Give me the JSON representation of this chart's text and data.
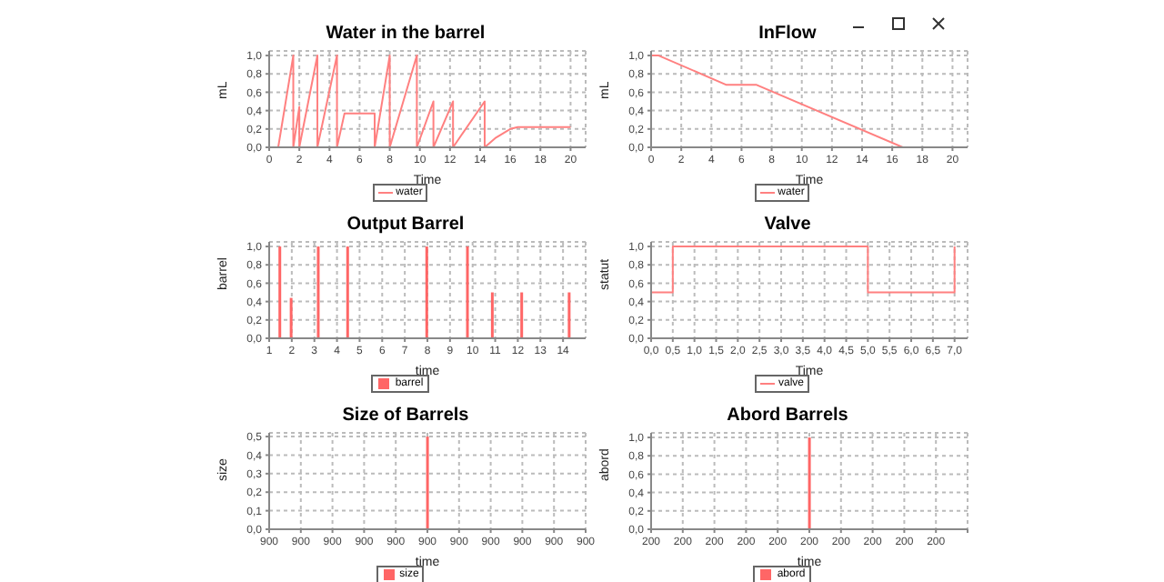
{
  "chart_data": [
    {
      "type": "line",
      "title": "Water in the barrel",
      "xlabel": "Time",
      "ylabel": "mL",
      "xlim": [
        0,
        21
      ],
      "xticks": [
        0,
        2,
        4,
        6,
        8,
        10,
        12,
        14,
        16,
        18,
        20
      ],
      "ylim": [
        0,
        1.05
      ],
      "yticks": [
        {
          "value": 0,
          "label": "0,0"
        },
        {
          "value": 0.2,
          "label": "0,2"
        },
        {
          "value": 0.4,
          "label": "0,4"
        },
        {
          "value": 0.6,
          "label": "0,6"
        },
        {
          "value": 0.8,
          "label": "0,8"
        },
        {
          "value": 1,
          "label": "1,0"
        }
      ],
      "grid": true,
      "legend": "bottom",
      "x": [
        0,
        0.6,
        1.6,
        1.6,
        2.0,
        2.0,
        3.2,
        3.2,
        4.5,
        4.5,
        5.0,
        7.0,
        7.0,
        8.0,
        8.0,
        9.8,
        9.8,
        10.9,
        10.9,
        12.2,
        12.2,
        14.3,
        14.3,
        15.0,
        16.0,
        16.5,
        20.0
      ],
      "series": [
        {
          "name": "water",
          "color": "#ff8080",
          "values": [
            0,
            0,
            1,
            0,
            0.44,
            0,
            1,
            0,
            1,
            0,
            0.37,
            0.37,
            0,
            1,
            0,
            1,
            0,
            0.5,
            0,
            0.5,
            0,
            0.5,
            0,
            0.1,
            0.2,
            0.22,
            0.22
          ]
        }
      ]
    },
    {
      "type": "line",
      "title": "InFlow",
      "xlabel": "Time",
      "ylabel": "mL",
      "xlim": [
        0,
        21
      ],
      "xticks": [
        0,
        2,
        4,
        6,
        8,
        10,
        12,
        14,
        16,
        18,
        20
      ],
      "ylim": [
        0,
        1.05
      ],
      "yticks": [
        {
          "value": 0,
          "label": "0,0"
        },
        {
          "value": 0.2,
          "label": "0,2"
        },
        {
          "value": 0.4,
          "label": "0,4"
        },
        {
          "value": 0.6,
          "label": "0,6"
        },
        {
          "value": 0.8,
          "label": "0,8"
        },
        {
          "value": 1,
          "label": "1,0"
        }
      ],
      "grid": true,
      "legend": "bottom",
      "x": [
        0,
        0.5,
        5,
        7,
        16.7,
        20
      ],
      "series": [
        {
          "name": "water",
          "color": "#ff8080",
          "values": [
            1,
            1,
            0.68,
            0.68,
            0,
            0
          ]
        }
      ]
    },
    {
      "type": "bar",
      "title": "Output Barrel",
      "xlabel": "time",
      "ylabel": "barrel",
      "xlim": [
        1,
        15
      ],
      "xticks": [
        1,
        2,
        3,
        4,
        5,
        6,
        7,
        8,
        9,
        10,
        11,
        12,
        13,
        14
      ],
      "ylim": [
        0,
        1.05
      ],
      "yticks": [
        {
          "value": 0,
          "label": "0,0"
        },
        {
          "value": 0.2,
          "label": "0,2"
        },
        {
          "value": 0.4,
          "label": "0,4"
        },
        {
          "value": 0.6,
          "label": "0,6"
        },
        {
          "value": 0.8,
          "label": "0,8"
        },
        {
          "value": 1,
          "label": "1,0"
        }
      ],
      "grid": true,
      "legend": "bottom",
      "x": [
        1.5,
        2.0,
        3.2,
        4.5,
        8.0,
        9.8,
        10.9,
        12.2,
        14.3
      ],
      "series": [
        {
          "name": "barrel",
          "color": "#ff6666",
          "values": [
            1,
            0.44,
            1,
            1,
            1,
            1,
            0.5,
            0.5,
            0.5
          ]
        }
      ]
    },
    {
      "type": "step",
      "title": "Valve",
      "xlabel": "Time",
      "ylabel": "statut",
      "xlim": [
        0,
        7.3
      ],
      "xticks": [
        {
          "value": 0,
          "label": "0,0"
        },
        {
          "value": 0.5,
          "label": "0,5"
        },
        {
          "value": 1,
          "label": "1,0"
        },
        {
          "value": 1.5,
          "label": "1,5"
        },
        {
          "value": 2,
          "label": "2,0"
        },
        {
          "value": 2.5,
          "label": "2,5"
        },
        {
          "value": 3,
          "label": "3,0"
        },
        {
          "value": 3.5,
          "label": "3,5"
        },
        {
          "value": 4,
          "label": "4,0"
        },
        {
          "value": 4.5,
          "label": "4,5"
        },
        {
          "value": 5,
          "label": "5,0"
        },
        {
          "value": 5.5,
          "label": "5,5"
        },
        {
          "value": 6,
          "label": "6,0"
        },
        {
          "value": 6.5,
          "label": "6,5"
        },
        {
          "value": 7,
          "label": "7,0"
        }
      ],
      "ylim": [
        0,
        1.05
      ],
      "yticks": [
        {
          "value": 0,
          "label": "0,0"
        },
        {
          "value": 0.2,
          "label": "0,2"
        },
        {
          "value": 0.4,
          "label": "0,4"
        },
        {
          "value": 0.6,
          "label": "0,6"
        },
        {
          "value": 0.8,
          "label": "0,8"
        },
        {
          "value": 1,
          "label": "1,0"
        }
      ],
      "grid": true,
      "legend": "bottom",
      "x": [
        0,
        0.5,
        5,
        7
      ],
      "series": [
        {
          "name": "valve",
          "color": "#ff8080",
          "values": [
            0.5,
            1,
            0.5,
            1
          ]
        }
      ]
    },
    {
      "type": "bar",
      "title": "Size of Barrels",
      "xlabel": "time",
      "ylabel": "size",
      "categories": [
        "900",
        "900",
        "900",
        "900",
        "900",
        "900",
        "900",
        "900",
        "900",
        "900",
        "900"
      ],
      "ylim": [
        0,
        0.52
      ],
      "yticks": [
        {
          "value": 0,
          "label": "0,0"
        },
        {
          "value": 0.1,
          "label": "0,1"
        },
        {
          "value": 0.2,
          "label": "0,2"
        },
        {
          "value": 0.3,
          "label": "0,3"
        },
        {
          "value": 0.4,
          "label": "0,4"
        },
        {
          "value": 0.5,
          "label": "0,5"
        }
      ],
      "grid": true,
      "legend": "bottom",
      "series": [
        {
          "name": "size",
          "color": "#ff6666",
          "values": [
            null,
            null,
            null,
            null,
            null,
            0.5,
            null,
            null,
            null,
            null,
            null
          ]
        }
      ]
    },
    {
      "type": "bar",
      "title": "Abord Barrels",
      "xlabel": "time",
      "ylabel": "abord",
      "categories": [
        "200",
        "200",
        "200",
        "200",
        "200",
        "200",
        "200",
        "200",
        "200",
        "200",
        null
      ],
      "ylim": [
        0,
        1.05
      ],
      "yticks": [
        {
          "value": 0,
          "label": "0,0"
        },
        {
          "value": 0.2,
          "label": "0,2"
        },
        {
          "value": 0.4,
          "label": "0,4"
        },
        {
          "value": 0.6,
          "label": "0,6"
        },
        {
          "value": 0.8,
          "label": "0,8"
        },
        {
          "value": 1,
          "label": "1,0"
        }
      ],
      "grid": true,
      "legend": "bottom",
      "series": [
        {
          "name": "abord",
          "color": "#ff6666",
          "values": [
            null,
            null,
            null,
            null,
            null,
            1,
            null,
            null,
            null,
            null,
            null
          ]
        }
      ]
    }
  ]
}
